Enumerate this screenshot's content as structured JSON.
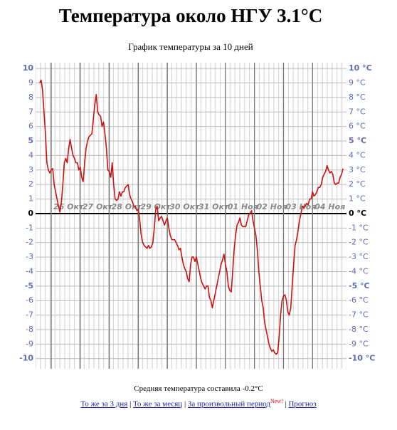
{
  "chart_data": {
    "type": "line",
    "title": "Температура около НГУ 3.1°C",
    "subtitle": "График температуры за 10 дней",
    "color": "#cc1111",
    "xlim": [
      -0.54,
      10.17
    ],
    "xticks": [
      {
        "value": 0,
        "label": "26 Окт"
      },
      {
        "value": 1,
        "label": "27 Окт"
      },
      {
        "value": 2,
        "label": "28 Окт"
      },
      {
        "value": 3,
        "label": "29 Окт"
      },
      {
        "value": 4,
        "label": "30 Окт"
      },
      {
        "value": 5,
        "label": "31 Окт"
      },
      {
        "value": 6,
        "label": "01 Ноя"
      },
      {
        "value": 7,
        "label": "02 Ноя"
      },
      {
        "value": 8,
        "label": "03 Ноя"
      },
      {
        "value": 9,
        "label": "04 Ноя"
      }
    ],
    "ylim": [
      -10.7,
      10.4
    ],
    "yticks": [
      10,
      9,
      8,
      7,
      6,
      5,
      4,
      3,
      2,
      1,
      0,
      -1,
      -2,
      -3,
      -4,
      -5,
      -6,
      -7,
      -8,
      -9,
      -10
    ],
    "y2lim": [
      -10.7,
      10.4
    ],
    "y2ticks": [
      {
        "value": 10,
        "label": "10 °C"
      },
      {
        "value": 9,
        "label": "9 °C"
      },
      {
        "value": 8,
        "label": "8 °C"
      },
      {
        "value": 7,
        "label": "7 °C"
      },
      {
        "value": 6,
        "label": "6 °C"
      },
      {
        "value": 5,
        "label": "5 °C"
      },
      {
        "value": 4,
        "label": "4 °C"
      },
      {
        "value": 3,
        "label": "3 °C"
      },
      {
        "value": 2,
        "label": "2 °C"
      },
      {
        "value": 1,
        "label": "1 °C"
      },
      {
        "value": 0,
        "label": "0 °C"
      },
      {
        "value": -1,
        "label": "-1 °C"
      },
      {
        "value": -2,
        "label": "-2 °C"
      },
      {
        "value": -3,
        "label": "-3 °C"
      },
      {
        "value": -4,
        "label": "-4 °C"
      },
      {
        "value": -5,
        "label": "-5 °C"
      },
      {
        "value": -6,
        "label": "-6 °C"
      },
      {
        "value": -7,
        "label": "-7 °C"
      },
      {
        "value": -8,
        "label": "-8 °C"
      },
      {
        "value": -9,
        "label": "-9 °C"
      },
      {
        "value": -10,
        "label": "-10 °C"
      }
    ],
    "grid": true,
    "x": [
      -0.4,
      -0.35,
      -0.3,
      -0.25,
      -0.2,
      -0.15,
      -0.1,
      -0.05,
      0,
      0.05,
      0.1,
      0.15,
      0.2,
      0.25,
      0.3,
      0.35,
      0.4,
      0.45,
      0.5,
      0.55,
      0.6,
      0.65,
      0.7,
      0.75,
      0.8,
      0.85,
      0.9,
      0.95,
      1,
      1.05,
      1.1,
      1.15,
      1.2,
      1.25,
      1.3,
      1.35,
      1.4,
      1.45,
      1.5,
      1.55,
      1.6,
      1.65,
      1.7,
      1.75,
      1.8,
      1.85,
      1.9,
      1.95,
      2,
      2.05,
      2.1,
      2.15,
      2.2,
      2.25,
      2.3,
      2.35,
      2.4,
      2.45,
      2.5,
      2.55,
      2.6,
      2.65,
      2.7,
      2.75,
      2.8,
      2.85,
      2.9,
      2.95,
      3,
      3.05,
      3.1,
      3.15,
      3.2,
      3.25,
      3.3,
      3.35,
      3.4,
      3.45,
      3.5,
      3.55,
      3.6,
      3.65,
      3.7,
      3.75,
      3.8,
      3.85,
      3.9,
      3.95,
      4,
      4.05,
      4.1,
      4.15,
      4.2,
      4.25,
      4.3,
      4.35,
      4.4,
      4.45,
      4.5,
      4.55,
      4.6,
      4.65,
      4.7,
      4.75,
      4.8,
      4.85,
      4.9,
      4.95,
      5,
      5.05,
      5.1,
      5.15,
      5.2,
      5.25,
      5.3,
      5.35,
      5.4,
      5.45,
      5.5,
      5.55,
      5.6,
      5.65,
      5.7,
      5.75,
      5.8,
      5.85,
      5.9,
      5.95,
      6,
      6.05,
      6.1,
      6.15,
      6.2,
      6.25,
      6.3,
      6.35,
      6.4,
      6.45,
      6.5,
      6.55,
      6.6,
      6.65,
      6.7,
      6.75,
      6.8,
      6.85,
      6.9,
      6.95,
      7,
      7.05,
      7.1,
      7.15,
      7.2,
      7.25,
      7.3,
      7.35,
      7.4,
      7.45,
      7.5,
      7.55,
      7.6,
      7.65,
      7.7,
      7.75,
      7.8,
      7.85,
      7.9,
      7.95,
      8,
      8.05,
      8.1,
      8.15,
      8.2,
      8.25,
      8.3,
      8.35,
      8.4,
      8.45,
      8.5,
      8.55,
      8.6,
      8.65,
      8.7,
      8.75,
      8.8,
      8.85,
      8.9,
      8.95,
      9,
      9.05,
      9.1,
      9.15,
      9.2,
      9.25,
      9.3,
      9.35,
      9.4,
      9.45,
      9.5,
      9.55,
      9.6,
      9.65,
      9.7,
      9.75,
      9.8,
      9.85,
      9.9,
      9.95,
      10,
      10.05
    ],
    "values": [
      9.0,
      9.2,
      8.5,
      7,
      5.5,
      3.5,
      3.0,
      2.8,
      3.0,
      3.1,
      2.0,
      1.5,
      1.0,
      0.5,
      0.1,
      0.8,
      2.0,
      3.5,
      3.8,
      3.5,
      4.5,
      5.1,
      4.5,
      4.0,
      3.8,
      3.5,
      3.5,
      3.0,
      3.2,
      2.5,
      2.2,
      3.5,
      4.5,
      5.0,
      5.3,
      5.4,
      5.5,
      6.5,
      7.5,
      8.2,
      7.0,
      6.8,
      6.7,
      6.0,
      6.3,
      5.5,
      4.5,
      3.0,
      2.9,
      2.5,
      3.5,
      2.0,
      1.0,
      0.9,
      1.0,
      1.5,
      1.2,
      1.5,
      1.5,
      1.8,
      1.9,
      2.0,
      1.3,
      1.0,
      0.8,
      0.5,
      0.5,
      0.2,
      0.3,
      -0.5,
      -1.5,
      -2.0,
      -2.2,
      -2.3,
      -2.4,
      -2.2,
      -2.4,
      -2.3,
      -2.0,
      -1.0,
      0.3,
      0.5,
      -0.5,
      -0.3,
      -0.2,
      -0.5,
      -0.8,
      -0.5,
      -0.3,
      -1.0,
      -1.5,
      -1.8,
      -1.8,
      -1.8,
      -2.0,
      -2.2,
      -2.5,
      -2.4,
      -3.0,
      -3.5,
      -3.8,
      -4.0,
      -4.5,
      -4.7,
      -3.5,
      -3.0,
      -3.0,
      -3.3,
      -3.0,
      -3.5,
      -4.0,
      -4.5,
      -4.8,
      -5.0,
      -5.2,
      -5.0,
      -5.0,
      -5.8,
      -6.0,
      -6.5,
      -6.0,
      -5.5,
      -5.0,
      -4.5,
      -4.0,
      -3.5,
      -3.2,
      -2.8,
      -3.5,
      -4.0,
      -5.0,
      -5.3,
      -5.4,
      -4.0,
      -2.5,
      -1.5,
      -0.8,
      -0.6,
      -0.3,
      -0.8,
      -0.9,
      -0.9,
      -0.9,
      -0.5,
      -0.1,
      0.0,
      0.2,
      -0.5,
      -1.0,
      -1.5,
      -2.5,
      -4.0,
      -5.0,
      -6.0,
      -6.5,
      -7.5,
      -8.0,
      -8.5,
      -9.0,
      -9.3,
      -9.5,
      -9.4,
      -9.6,
      -9.7,
      -9.6,
      -8.5,
      -7.0,
      -6.0,
      -5.7,
      -5.6,
      -6.0,
      -6.8,
      -7.0,
      -6.5,
      -5.0,
      -3.5,
      -2.2,
      -1.8,
      -1.2,
      -0.5,
      0.0,
      0.5,
      0.4,
      0.5,
      0.7,
      0.6,
      1.0,
      1.0,
      1.5,
      1.2,
      1.3,
      1.5,
      1.8,
      1.8,
      2.0,
      2.5,
      2.7,
      2.9,
      3.3,
      3.0,
      2.8,
      2.9,
      2.7,
      2.1,
      2.0,
      2.1,
      2.1,
      2.5,
      2.7,
      3.1
    ]
  },
  "footer": {
    "average": "Средняя температура составила -0.2°C",
    "links": [
      "То же за 3 дня",
      "То же за месяц",
      "За произвольный период",
      "Прогноз"
    ],
    "separator": "|",
    "badge": "New!"
  }
}
